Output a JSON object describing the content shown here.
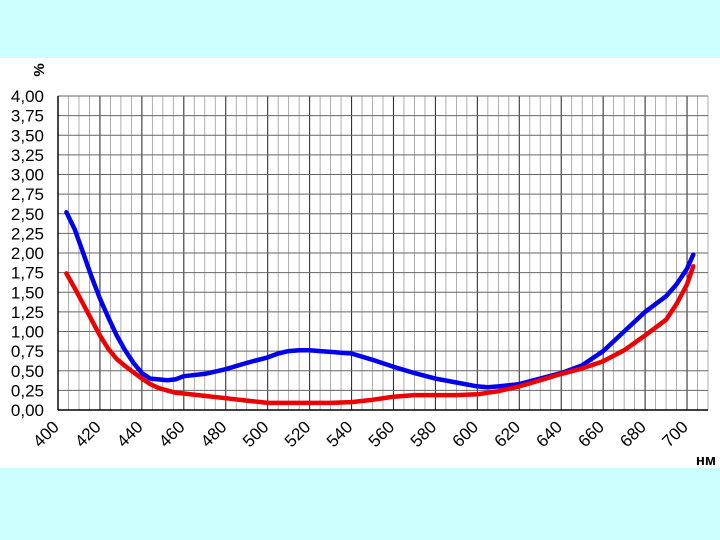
{
  "chart_data": {
    "type": "line",
    "xlabel": "нм",
    "ylabel": "%",
    "xlim": [
      400,
      710
    ],
    "ylim": [
      0,
      4
    ],
    "x_tick_labels": [
      "400",
      "420",
      "440",
      "460",
      "480",
      "500",
      "520",
      "540",
      "560",
      "580",
      "600",
      "620",
      "640",
      "660",
      "680",
      "700"
    ],
    "y_tick_labels": [
      "0,00",
      "0,25",
      "0,50",
      "0,75",
      "1,00",
      "1,25",
      "1,50",
      "1,75",
      "2,00",
      "2,25",
      "2,50",
      "2,75",
      "3,00",
      "3,25",
      "3,50",
      "3,75",
      "4,00"
    ],
    "grid": true,
    "series": [
      {
        "color": "#0000ee",
        "x": [
          404,
          408,
          412,
          416,
          420,
          424,
          428,
          432,
          436,
          440,
          444,
          448,
          452,
          456,
          460,
          470,
          480,
          490,
          500,
          505,
          510,
          515,
          520,
          525,
          530,
          535,
          540,
          550,
          560,
          570,
          580,
          590,
          600,
          605,
          610,
          620,
          630,
          640,
          650,
          660,
          670,
          680,
          690,
          695,
          700,
          703
        ],
        "y": [
          2.52,
          2.3,
          2.0,
          1.7,
          1.42,
          1.18,
          0.95,
          0.76,
          0.6,
          0.47,
          0.4,
          0.39,
          0.38,
          0.39,
          0.43,
          0.46,
          0.52,
          0.6,
          0.67,
          0.72,
          0.75,
          0.76,
          0.76,
          0.75,
          0.74,
          0.73,
          0.72,
          0.64,
          0.55,
          0.47,
          0.4,
          0.35,
          0.3,
          0.29,
          0.3,
          0.33,
          0.4,
          0.47,
          0.57,
          0.75,
          1.0,
          1.25,
          1.45,
          1.6,
          1.8,
          1.98
        ]
      },
      {
        "color": "#ee0000",
        "x": [
          404,
          408,
          412,
          416,
          420,
          424,
          428,
          432,
          436,
          440,
          444,
          448,
          452,
          456,
          460,
          470,
          480,
          490,
          500,
          510,
          520,
          530,
          540,
          550,
          560,
          570,
          580,
          590,
          600,
          610,
          620,
          630,
          640,
          650,
          660,
          670,
          680,
          690,
          695,
          700,
          703
        ],
        "y": [
          1.74,
          1.55,
          1.35,
          1.15,
          0.95,
          0.78,
          0.65,
          0.56,
          0.48,
          0.4,
          0.33,
          0.28,
          0.25,
          0.22,
          0.21,
          0.18,
          0.15,
          0.12,
          0.09,
          0.09,
          0.09,
          0.09,
          0.1,
          0.13,
          0.17,
          0.19,
          0.19,
          0.19,
          0.2,
          0.24,
          0.3,
          0.38,
          0.46,
          0.53,
          0.62,
          0.76,
          0.95,
          1.15,
          1.35,
          1.6,
          1.83
        ]
      }
    ]
  }
}
